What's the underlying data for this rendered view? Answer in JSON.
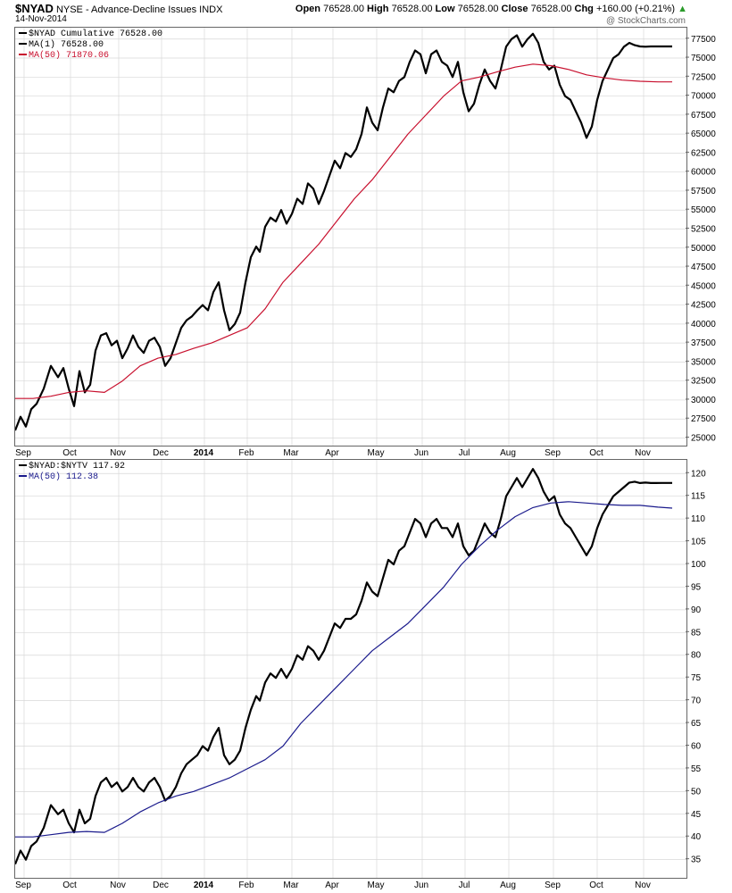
{
  "header": {
    "symbol": "$NYAD",
    "description": "NYSE - Advance-Decline Issues",
    "exchange": "INDX",
    "date": "14-Nov-2014",
    "open_label": "Open",
    "open": "76528.00",
    "high_label": "High",
    "high": "76528.00",
    "low_label": "Low",
    "low": "76528.00",
    "close_label": "Close",
    "close": "76528.00",
    "chg_label": "Chg",
    "chg": "+160.00 (+0.21%)",
    "watermark": "@ StockCharts.com"
  },
  "legend1": {
    "line1": "$NYAD Cumulative 76528.00",
    "line2": "MA(1) 76528.00",
    "line3": "MA(50) 71870.06"
  },
  "legend2": {
    "line1": "$NYAD:$NYTV 117.92",
    "line2": "MA(50) 112.38"
  },
  "colors": {
    "price": "#000000",
    "ma_top": "#c8102e",
    "ma_bottom": "#1a1a8c",
    "grid": "#d8d8d8"
  },
  "chart_data": [
    {
      "type": "line",
      "title": "$NYAD Cumulative",
      "y_axis_position": "right",
      "ylim": [
        24000,
        79000
      ],
      "yticks": [
        25000,
        27500,
        30000,
        32500,
        35000,
        37500,
        40000,
        42500,
        45000,
        47500,
        50000,
        52500,
        55000,
        57500,
        60000,
        62500,
        65000,
        67500,
        70000,
        72500,
        75000,
        77500
      ],
      "x_labels": [
        "Sep",
        "Oct",
        "Nov",
        "Dec",
        "2014",
        "Feb",
        "Mar",
        "Apr",
        "May",
        "Jun",
        "Jul",
        "Aug",
        "Sep",
        "Oct",
        "Nov"
      ],
      "x_label_pos": [
        20,
        72,
        126,
        174,
        222,
        270,
        320,
        366,
        415,
        466,
        514,
        563,
        613,
        662,
        714
      ],
      "x_range": [
        0,
        752
      ],
      "grid": true,
      "series": [
        {
          "name": "$NYAD Cumulative",
          "x": [
            0,
            6,
            12,
            18,
            24,
            32,
            40,
            48,
            54,
            60,
            66,
            72,
            78,
            84,
            90,
            96,
            102,
            108,
            114,
            120,
            126,
            132,
            138,
            144,
            150,
            156,
            162,
            168,
            174,
            180,
            186,
            192,
            198,
            204,
            210,
            216,
            222,
            228,
            234,
            240,
            246,
            252,
            258,
            264,
            270,
            274,
            280,
            286,
            292,
            298,
            304,
            310,
            316,
            322,
            328,
            334,
            340,
            346,
            352,
            358,
            364,
            370,
            376,
            382,
            388,
            394,
            400,
            406,
            412,
            418,
            424,
            430,
            436,
            442,
            448,
            454,
            460,
            466,
            472,
            478,
            484,
            490,
            496,
            502,
            508,
            514,
            520,
            526,
            532,
            538,
            544,
            550,
            556,
            562,
            568,
            574,
            580,
            586,
            592,
            598,
            604,
            610,
            616,
            622,
            628,
            634,
            640,
            646,
            652,
            658,
            664,
            670,
            676,
            682,
            688,
            694,
            700,
            706,
            712,
            718,
            724,
            730,
            736
          ],
          "values": [
            26000,
            27800,
            26500,
            28800,
            29500,
            31500,
            34500,
            33000,
            34200,
            31500,
            29200,
            33800,
            31000,
            32000,
            36500,
            38500,
            38800,
            37200,
            37800,
            35500,
            36800,
            38500,
            37000,
            36200,
            37800,
            38200,
            37000,
            34500,
            35500,
            37500,
            39500,
            40500,
            41000,
            41800,
            42500,
            41800,
            44200,
            45500,
            41800,
            39200,
            40000,
            41500,
            45500,
            48800,
            50200,
            49500,
            52800,
            54000,
            53500,
            55000,
            53200,
            54500,
            56500,
            55800,
            58500,
            57800,
            55800,
            57500,
            59500,
            61500,
            60500,
            62500,
            62000,
            63000,
            65000,
            68500,
            66500,
            65500,
            68500,
            71000,
            70500,
            72000,
            72500,
            74500,
            76000,
            75500,
            73000,
            75500,
            76000,
            74500,
            74000,
            72500,
            74500,
            70500,
            68000,
            69000,
            71500,
            73500,
            72000,
            71000,
            73500,
            76500,
            77500,
            78000,
            76500,
            77500,
            78200,
            77000,
            74500,
            73500,
            74000,
            71500,
            70000,
            69500,
            68000,
            66500,
            64500,
            66000,
            69500,
            72000,
            73500,
            75000,
            75500,
            76500,
            77000,
            76700,
            76528,
            76500,
            76528,
            76528,
            76528,
            76528,
            76528
          ],
          "note": ""
        },
        {
          "name": "MA(50)",
          "x": [
            0,
            20,
            40,
            60,
            80,
            100,
            120,
            140,
            160,
            180,
            200,
            220,
            240,
            260,
            280,
            300,
            320,
            340,
            360,
            380,
            400,
            420,
            440,
            460,
            480,
            500,
            520,
            540,
            560,
            580,
            600,
            620,
            640,
            660,
            680,
            700,
            720,
            736
          ],
          "values": [
            30200,
            30200,
            30500,
            31000,
            31200,
            31000,
            32500,
            34500,
            35500,
            36000,
            36800,
            37500,
            38500,
            39500,
            42000,
            45500,
            48000,
            50500,
            53500,
            56500,
            59000,
            62000,
            65000,
            67500,
            70000,
            72000,
            72500,
            73200,
            73800,
            74200,
            74000,
            73500,
            72800,
            72400,
            72100,
            71950,
            71870,
            71870
          ]
        }
      ]
    },
    {
      "type": "line",
      "title": "$NYAD:$NYTV",
      "y_axis_position": "right",
      "ylim": [
        31,
        123
      ],
      "yticks": [
        35,
        40,
        45,
        50,
        55,
        60,
        65,
        70,
        75,
        80,
        85,
        90,
        95,
        100,
        105,
        110,
        115,
        120
      ],
      "x_labels": [
        "Sep",
        "Oct",
        "Nov",
        "Dec",
        "2014",
        "Feb",
        "Mar",
        "Apr",
        "May",
        "Jun",
        "Jul",
        "Aug",
        "Sep",
        "Oct",
        "Nov"
      ],
      "x_label_pos": [
        20,
        72,
        126,
        174,
        222,
        270,
        320,
        366,
        415,
        466,
        514,
        563,
        613,
        662,
        714
      ],
      "x_range": [
        0,
        752
      ],
      "grid": true,
      "series": [
        {
          "name": "$NYAD:$NYTV",
          "x": [
            0,
            6,
            12,
            18,
            24,
            32,
            40,
            48,
            54,
            60,
            66,
            72,
            78,
            84,
            90,
            96,
            102,
            108,
            114,
            120,
            126,
            132,
            138,
            144,
            150,
            156,
            162,
            168,
            174,
            180,
            186,
            192,
            198,
            204,
            210,
            216,
            222,
            228,
            234,
            240,
            246,
            252,
            258,
            264,
            270,
            274,
            280,
            286,
            292,
            298,
            304,
            310,
            316,
            322,
            328,
            334,
            340,
            346,
            352,
            358,
            364,
            370,
            376,
            382,
            388,
            394,
            400,
            406,
            412,
            418,
            424,
            430,
            436,
            442,
            448,
            454,
            460,
            466,
            472,
            478,
            484,
            490,
            496,
            502,
            508,
            514,
            520,
            526,
            532,
            538,
            544,
            550,
            556,
            562,
            568,
            574,
            580,
            586,
            592,
            598,
            604,
            610,
            616,
            622,
            628,
            634,
            640,
            646,
            652,
            658,
            664,
            670,
            676,
            682,
            688,
            694,
            700,
            706,
            712,
            718,
            724,
            730,
            736
          ],
          "values": [
            34,
            37,
            35,
            38,
            39,
            42,
            47,
            45,
            46,
            43,
            41,
            46,
            43,
            44,
            49,
            52,
            53,
            51,
            52,
            50,
            51,
            53,
            51,
            50,
            52,
            53,
            51,
            48,
            49,
            51,
            54,
            56,
            57,
            58,
            60,
            59,
            62,
            64,
            58,
            56,
            57,
            59,
            64,
            68,
            71,
            70,
            74,
            76,
            75,
            77,
            75,
            77,
            80,
            79,
            82,
            81,
            79,
            81,
            84,
            87,
            86,
            88,
            88,
            89,
            92,
            96,
            94,
            93,
            97,
            101,
            100,
            103,
            104,
            107,
            110,
            109,
            106,
            109,
            110,
            108,
            108,
            106,
            109,
            104,
            102,
            103,
            106,
            109,
            107,
            106,
            110,
            115,
            117,
            119,
            117,
            119,
            121,
            119,
            116,
            114,
            115,
            111,
            109,
            108,
            106,
            104,
            102,
            104,
            108,
            111,
            113,
            115,
            116,
            117,
            118,
            118.2,
            117.9,
            118,
            117.9,
            117.9,
            117.92,
            117.92,
            117.92
          ],
          "note": ""
        },
        {
          "name": "MA(50)",
          "x": [
            0,
            20,
            40,
            60,
            80,
            100,
            120,
            140,
            160,
            180,
            200,
            220,
            240,
            260,
            280,
            300,
            320,
            340,
            360,
            380,
            400,
            420,
            440,
            460,
            480,
            500,
            520,
            540,
            560,
            580,
            600,
            620,
            640,
            660,
            680,
            700,
            720,
            736
          ],
          "values": [
            40,
            40,
            40.5,
            41,
            41.2,
            41,
            43,
            45.5,
            47.5,
            49,
            50,
            51.5,
            53,
            55,
            57,
            60,
            65,
            69,
            73,
            77,
            81,
            84,
            87,
            91,
            95,
            100,
            104,
            107.5,
            110.5,
            112.5,
            113.5,
            113.8,
            113.5,
            113.2,
            113,
            113,
            112.6,
            112.38
          ]
        }
      ]
    }
  ]
}
